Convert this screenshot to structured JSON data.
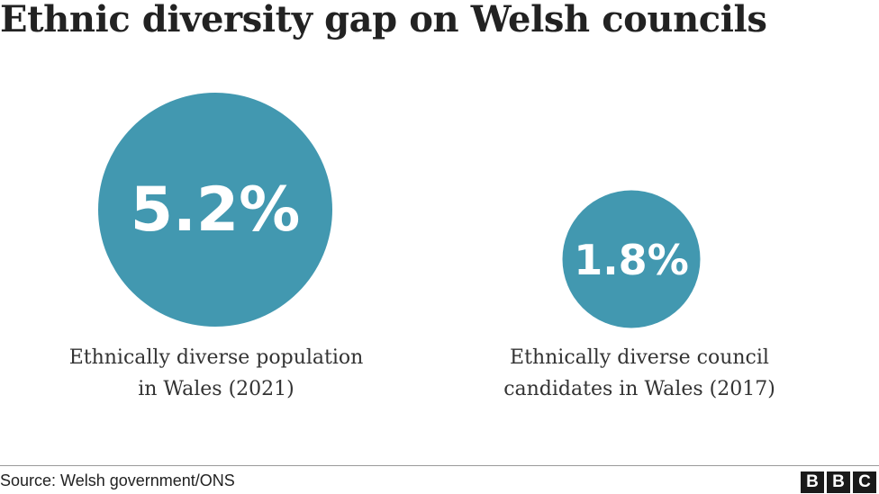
{
  "title": "Ethnic diversity gap on Welsh councils",
  "colors": {
    "bubble": "#4298b0",
    "text": "#222222"
  },
  "chart_data": {
    "type": "bubble",
    "title": "Ethnic diversity gap on Welsh councils",
    "series": [
      {
        "label": "5.2%",
        "value": 5.2,
        "caption": [
          "Ethnically diverse population",
          "in Wales (2021)"
        ]
      },
      {
        "label": "1.8%",
        "value": 1.8,
        "caption": [
          "Ethnically diverse council",
          "candidates in Wales (2017)"
        ]
      }
    ]
  },
  "footer": {
    "source": "Source: Welsh government/ONS",
    "logo": [
      "B",
      "B",
      "C"
    ]
  }
}
